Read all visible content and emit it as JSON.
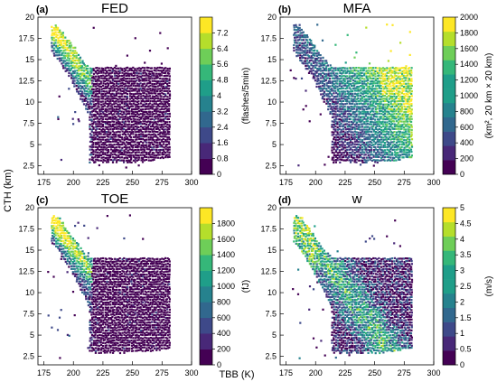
{
  "figure": {
    "ylabel": "CTH (km)",
    "xlabel": "TBB (K)"
  },
  "chart_data": [
    {
      "type": "heatmap",
      "panel_label": "(a)",
      "title": "FED",
      "x_ticks": [
        "175",
        "200",
        "225",
        "250",
        "275",
        "300"
      ],
      "y_ticks": [
        "2.5",
        "5",
        "7.5",
        "10",
        "12.5",
        "15",
        "17.5",
        "20"
      ],
      "xlim": [
        170,
        300
      ],
      "ylim": [
        1.5,
        20
      ],
      "colorbar": {
        "label": "(flashes/5min)",
        "ticks": [
          "0",
          "0.8",
          "1.6",
          "2.4",
          "3.2",
          "4",
          "4.8",
          "5.6",
          "6.4",
          "7.2"
        ],
        "range": [
          0,
          8
        ],
        "levels": 10
      },
      "pattern": "high values along the upper-left diagonal, low values across the main cloud body"
    },
    {
      "type": "heatmap",
      "panel_label": "(b)",
      "title": "MFA",
      "x_ticks": [
        "175",
        "200",
        "225",
        "250",
        "275",
        "300"
      ],
      "y_ticks": [
        "2.5",
        "5",
        "7.5",
        "10",
        "12.5",
        "15",
        "17.5",
        "20"
      ],
      "xlim": [
        170,
        300
      ],
      "ylim": [
        1.5,
        20
      ],
      "colorbar": {
        "label": "(km², 20 km × 20 km)",
        "ticks": [
          "0",
          "200",
          "400",
          "600",
          "800",
          "1000",
          "1200",
          "1400",
          "1600",
          "1800",
          "2000"
        ],
        "range": [
          0,
          2000
        ],
        "levels": 11
      },
      "pattern": "low values at cold tops, high values at warm, high anvils (upper right)"
    },
    {
      "type": "heatmap",
      "panel_label": "(c)",
      "title": "TOE",
      "x_ticks": [
        "175",
        "200",
        "225",
        "250",
        "275",
        "300"
      ],
      "y_ticks": [
        "2.5",
        "5",
        "7.5",
        "10",
        "12.5",
        "15",
        "17.5",
        "20"
      ],
      "xlim": [
        170,
        300
      ],
      "ylim": [
        1.5,
        20
      ],
      "colorbar": {
        "label": "(fJ)",
        "ticks": [
          "0",
          "200",
          "400",
          "600",
          "800",
          "1000",
          "1200",
          "1400",
          "1600",
          "1800"
        ],
        "range": [
          0,
          2000
        ],
        "levels": 10
      },
      "pattern": "high values along the upper-left diagonal, low values across the main cloud body"
    },
    {
      "type": "heatmap",
      "panel_label": "(d)",
      "title": "w",
      "x_ticks": [
        "175",
        "200",
        "225",
        "250",
        "275",
        "300"
      ],
      "y_ticks": [
        "2.5",
        "5",
        "7.5",
        "10",
        "12.5",
        "15",
        "17.5",
        "20"
      ],
      "xlim": [
        170,
        300
      ],
      "ylim": [
        1.5,
        20
      ],
      "colorbar": {
        "label": "(m/s)",
        "ticks": [
          "0",
          "0.5",
          "1",
          "1.5",
          "2",
          "2.5",
          "3",
          "3.5",
          "4",
          "4.5",
          "5"
        ],
        "range": [
          0,
          5
        ],
        "levels": 11
      },
      "pattern": "moderate values along the diagonal, speckled mix elsewhere"
    }
  ],
  "colors": {
    "viridis": [
      "#440154",
      "#482878",
      "#3e4989",
      "#31688e",
      "#26828e",
      "#1f9e89",
      "#35b779",
      "#6ece58",
      "#b5de2b",
      "#fde725"
    ]
  }
}
